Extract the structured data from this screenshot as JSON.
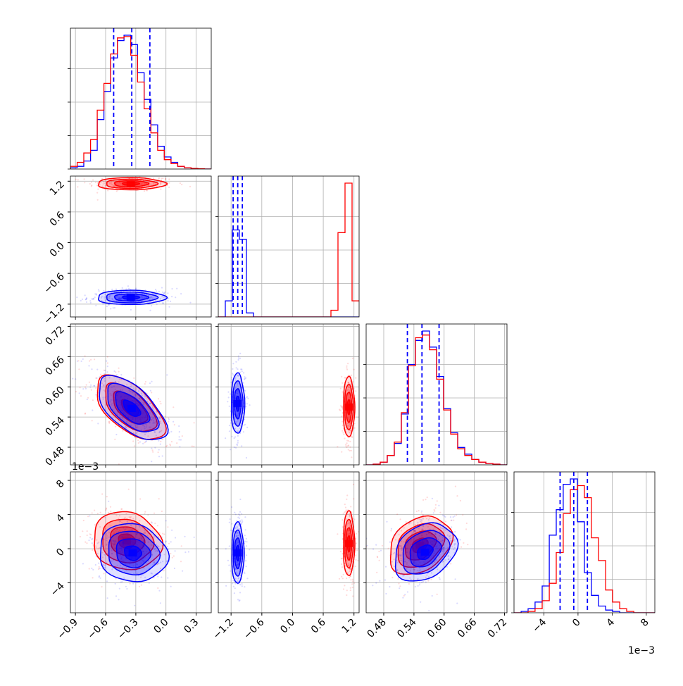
{
  "chart_data": {
    "type": "corner",
    "title": "",
    "colors": {
      "series_a": "#0000ff",
      "series_b": "#ff0000"
    },
    "series": [
      {
        "name": "",
        "color": "#0000ff"
      },
      {
        "name": "",
        "color": "#ff0000"
      }
    ],
    "parameters": [
      {
        "index": 0,
        "range": [
          -0.95,
          0.45
        ],
        "ticks": [
          -0.9,
          -0.6,
          -0.3,
          0.0,
          0.3
        ],
        "tick_labels": [
          "−0.9",
          "−0.6",
          "−0.3",
          "0.0",
          "0.3"
        ],
        "multiplier": ""
      },
      {
        "index": 1,
        "range": [
          -1.45,
          1.3
        ],
        "ticks": [
          -1.2,
          -0.6,
          0.0,
          0.6,
          1.2
        ],
        "tick_labels": [
          "−1.2",
          "−0.6",
          "0.0",
          "0.6",
          "1.2"
        ],
        "multiplier": ""
      },
      {
        "index": 2,
        "range": [
          0.445,
          0.725
        ],
        "ticks": [
          0.48,
          0.54,
          0.6,
          0.66,
          0.72
        ],
        "tick_labels": [
          "0.48",
          "0.54",
          "0.60",
          "0.66",
          "0.72"
        ],
        "multiplier": ""
      },
      {
        "index": 3,
        "range": [
          -0.0075,
          0.009
        ],
        "ticks": [
          -0.004,
          0.0,
          0.004,
          0.008
        ],
        "tick_labels": [
          "−4",
          "0",
          "4",
          "8"
        ],
        "multiplier": "1e−3"
      }
    ],
    "quantiles_series_a": [
      {
        "param": 0,
        "values": [
          -0.52,
          -0.34,
          -0.16
        ]
      },
      {
        "param": 1,
        "values": [
          -1.16,
          -1.07,
          -0.98
        ]
      },
      {
        "param": 2,
        "values": [
          0.527,
          0.556,
          0.59
        ]
      },
      {
        "param": 3,
        "values": [
          -0.0021,
          -0.0005,
          0.0011
        ]
      }
    ],
    "histograms": [
      {
        "param": 0,
        "bin_edges": [
          -0.95,
          -0.883,
          -0.817,
          -0.75,
          -0.683,
          -0.617,
          -0.55,
          -0.483,
          -0.417,
          -0.35,
          -0.283,
          -0.217,
          -0.15,
          -0.083,
          -0.017,
          0.05,
          0.117,
          0.183,
          0.25,
          0.317,
          0.383,
          0.45
        ],
        "series_a": [
          0.01,
          0.02,
          0.06,
          0.14,
          0.37,
          0.58,
          0.83,
          0.96,
          1.0,
          0.93,
          0.72,
          0.52,
          0.33,
          0.17,
          0.09,
          0.05,
          0.02,
          0.01,
          0.005,
          0.002,
          0.0
        ],
        "series_b": [
          0.02,
          0.05,
          0.12,
          0.22,
          0.44,
          0.64,
          0.86,
          0.98,
          0.99,
          0.85,
          0.65,
          0.45,
          0.27,
          0.14,
          0.07,
          0.04,
          0.02,
          0.01,
          0.005,
          0.002,
          0.0
        ]
      },
      {
        "param": 1,
        "bin_edges": [
          -1.45,
          -1.312,
          -1.175,
          -1.037,
          -0.9,
          -0.762,
          -0.625,
          -0.487,
          -0.35,
          -0.212,
          -0.075,
          0.062,
          0.2,
          0.337,
          0.475,
          0.612,
          0.75,
          0.887,
          1.025,
          1.162,
          1.3
        ],
        "series_a": [
          0.0,
          0.12,
          0.65,
          0.58,
          0.03,
          0.0,
          0.0,
          0.0,
          0.0,
          0.0,
          0.0,
          0.0,
          0.0,
          0.0,
          0.0,
          0.0,
          0.0,
          0.0,
          0.0,
          0.0
        ],
        "series_b": [
          0.0,
          0.0,
          0.0,
          0.0,
          0.0,
          0.0,
          0.0,
          0.0,
          0.0,
          0.0,
          0.0,
          0.0,
          0.0,
          0.0,
          0.0,
          0.0,
          0.05,
          0.63,
          1.0,
          0.12
        ]
      },
      {
        "param": 2,
        "bin_edges": [
          0.445,
          0.459,
          0.473,
          0.487,
          0.501,
          0.515,
          0.529,
          0.543,
          0.557,
          0.571,
          0.585,
          0.599,
          0.613,
          0.627,
          0.641,
          0.655,
          0.669,
          0.683,
          0.697,
          0.711,
          0.725
        ],
        "series_a": [
          0.0,
          0.005,
          0.02,
          0.07,
          0.16,
          0.38,
          0.75,
          0.93,
          1.0,
          0.88,
          0.66,
          0.42,
          0.24,
          0.13,
          0.08,
          0.04,
          0.02,
          0.01,
          0.005,
          0.0
        ],
        "series_b": [
          0.0,
          0.005,
          0.02,
          0.07,
          0.17,
          0.39,
          0.74,
          0.95,
          0.97,
          0.86,
          0.64,
          0.41,
          0.23,
          0.12,
          0.07,
          0.04,
          0.02,
          0.01,
          0.005,
          0.0
        ]
      },
      {
        "param": 3,
        "bin_edges": [
          -0.0075,
          -0.00667,
          -0.00585,
          -0.00503,
          -0.0042,
          -0.00337,
          -0.00255,
          -0.00173,
          -0.0009,
          -7e-05,
          0.00075,
          0.00157,
          0.0024,
          0.00323,
          0.00405,
          0.00488,
          0.0057,
          0.00653,
          0.00735,
          0.00818,
          0.009
        ],
        "series_a": [
          0.0,
          0.01,
          0.03,
          0.08,
          0.2,
          0.58,
          0.77,
          0.96,
          1.0,
          0.68,
          0.3,
          0.13,
          0.05,
          0.02,
          0.01,
          0.0,
          0.0,
          0.0,
          0.0,
          0.0
        ],
        "series_b": [
          0.0,
          0.0,
          0.01,
          0.03,
          0.09,
          0.22,
          0.45,
          0.74,
          0.92,
          0.95,
          0.86,
          0.56,
          0.39,
          0.17,
          0.08,
          0.03,
          0.01,
          0.0,
          0.0,
          0.0
        ]
      }
    ],
    "contours_2d": [
      {
        "x_param": 0,
        "y_param": 1,
        "series_a": {
          "center": [
            -0.35,
            -1.07
          ],
          "sigma": [
            0.17,
            0.07
          ],
          "rho": 0.0
        },
        "series_b": {
          "center": [
            -0.35,
            1.15
          ],
          "sigma": [
            0.17,
            0.06
          ],
          "rho": 0.0
        }
      },
      {
        "x_param": 0,
        "y_param": 2,
        "series_a": {
          "center": [
            -0.34,
            0.557
          ],
          "sigma": [
            0.17,
            0.032
          ],
          "rho": -0.62
        },
        "series_b": {
          "center": [
            -0.36,
            0.558
          ],
          "sigma": [
            0.17,
            0.032
          ],
          "rho": -0.6
        }
      },
      {
        "x_param": 1,
        "y_param": 2,
        "series_a": {
          "center": [
            -1.07,
            0.567
          ],
          "sigma": [
            0.065,
            0.03
          ],
          "rho": 0.0
        },
        "series_b": {
          "center": [
            1.1,
            0.56
          ],
          "sigma": [
            0.055,
            0.03
          ],
          "rho": 0.0
        }
      },
      {
        "x_param": 0,
        "y_param": 3,
        "series_a": {
          "center": [
            -0.33,
            -0.0005
          ],
          "sigma": [
            0.17,
            0.0017
          ],
          "rho": -0.1
        },
        "series_b": {
          "center": [
            -0.39,
            0.0009
          ],
          "sigma": [
            0.17,
            0.0017
          ],
          "rho": -0.1
        }
      },
      {
        "x_param": 1,
        "y_param": 3,
        "series_a": {
          "center": [
            -1.07,
            -0.0005
          ],
          "sigma": [
            0.06,
            0.0018
          ],
          "rho": 0.0
        },
        "series_b": {
          "center": [
            1.1,
            0.0006
          ],
          "sigma": [
            0.055,
            0.0019
          ],
          "rho": 0.0
        }
      },
      {
        "x_param": 2,
        "y_param": 3,
        "series_a": {
          "center": [
            0.562,
            -0.0004
          ],
          "sigma": [
            0.031,
            0.0017
          ],
          "rho": 0.28
        },
        "series_b": {
          "center": [
            0.552,
            0.0004
          ],
          "sigma": [
            0.031,
            0.0017
          ],
          "rho": 0.3
        }
      }
    ],
    "grid": true
  }
}
